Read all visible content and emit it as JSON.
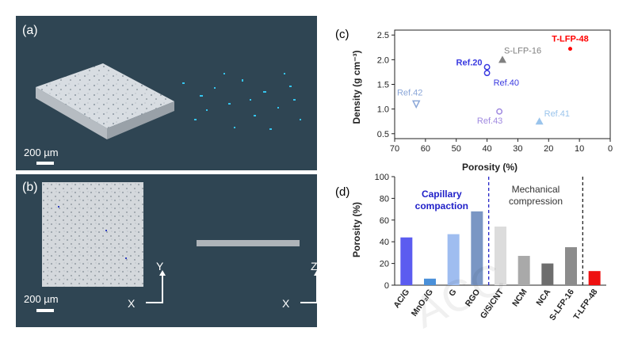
{
  "panels": {
    "a_label": "(a)",
    "b_label": "(b)",
    "c_label": "(c)",
    "d_label": "(d)",
    "scale_a": "200 µm",
    "scale_b": "200 µm",
    "axes_b": {
      "y": "Y",
      "x1": "X",
      "z": "Z",
      "x2": "X"
    }
  },
  "watermark": "ACC",
  "chart_data": [
    {
      "type": "scatter",
      "xlabel": "Porosity (%)",
      "ylabel": "Density (g cm⁻³)",
      "xlim": [
        70,
        0
      ],
      "ylim": [
        0.4,
        2.6
      ],
      "x_ticks": [
        "70",
        "60",
        "50",
        "40",
        "30",
        "20",
        "10",
        "0"
      ],
      "y_ticks": [
        "0.5",
        "1.0",
        "1.5",
        "2.0",
        "2.5"
      ],
      "points": [
        {
          "label": "T-LFP-48",
          "x": 13,
          "y": 2.22,
          "color": "#ff0000",
          "marker": "star"
        },
        {
          "label": "S-LFP-16",
          "x": 35,
          "y": 2.0,
          "color": "#808080",
          "marker": "triangle"
        },
        {
          "label": "Ref.20",
          "x": 40,
          "y": 1.85,
          "color": "#3a3ae0",
          "marker": "circle-open"
        },
        {
          "label": "Ref.40",
          "x": 40,
          "y": 1.73,
          "color": "#3a3ae0",
          "marker": "circle-open"
        },
        {
          "label": "Ref.42",
          "x": 63,
          "y": 1.1,
          "color": "#8aa6d8",
          "marker": "triangle-down-open"
        },
        {
          "label": "Ref.43",
          "x": 36,
          "y": 0.95,
          "color": "#a08ae0",
          "marker": "circle-open"
        },
        {
          "label": "Ref.41",
          "x": 23,
          "y": 0.75,
          "color": "#9ac4ec",
          "marker": "triangle"
        }
      ]
    },
    {
      "type": "bar",
      "ylabel": "Porosity (%)",
      "ylim": [
        0,
        100
      ],
      "y_ticks": [
        "0",
        "20",
        "40",
        "60",
        "80",
        "100"
      ],
      "categories": [
        "AC/G",
        "MnO₂/G",
        "G",
        "RGO",
        "G/S/CNT",
        "NCM",
        "NCA",
        "S-LFP-16",
        "T-LFP-48"
      ],
      "values": [
        44,
        6,
        47,
        68,
        54,
        27,
        20,
        35,
        13
      ],
      "colors": [
        "#5b5cf0",
        "#4a90d9",
        "#9fbdf0",
        "#7a96c4",
        "#dcdcdc",
        "#a9a9a9",
        "#6e6e6e",
        "#8c8c8c",
        "#ee1111"
      ],
      "groups": [
        {
          "label": "Capillary compaction",
          "color": "#1f1fc8"
        },
        {
          "label": "Mechanical compression",
          "color": "#333333"
        }
      ]
    }
  ]
}
